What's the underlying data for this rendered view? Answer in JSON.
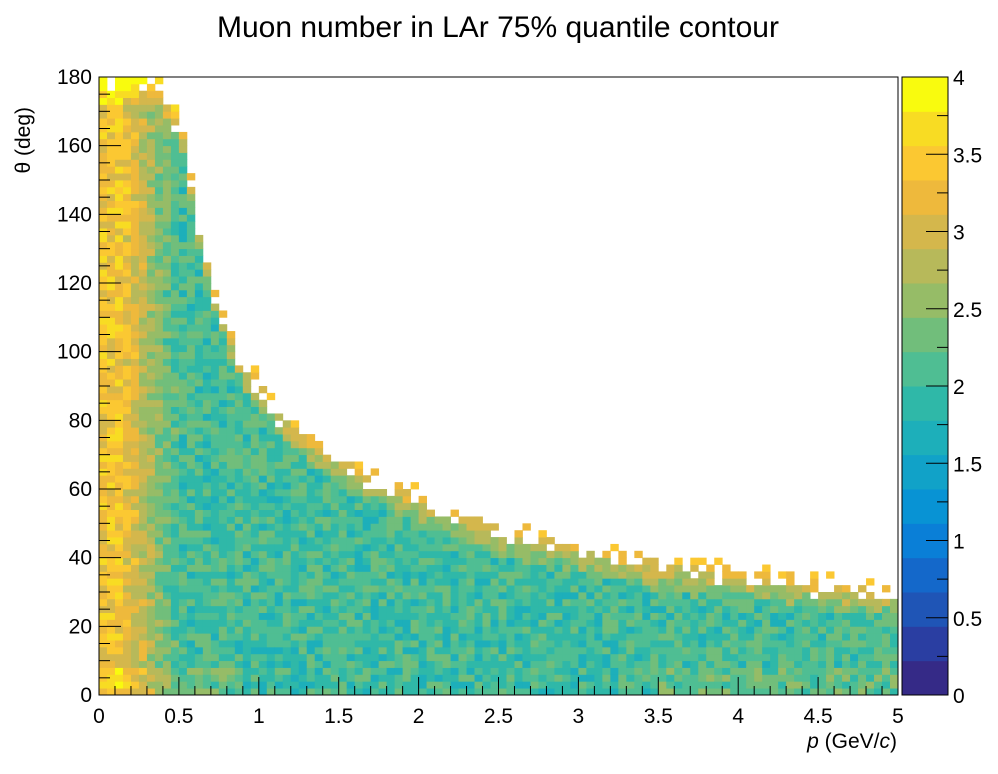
{
  "chart_data": {
    "type": "heatmap",
    "title": "Muon number in LAr 75% quantile contour",
    "xlabel_var": "p",
    "xlabel_units": " (GeV/",
    "xlabel_c": "c",
    "xlabel_close": ")",
    "ylabel": "θ (deg)",
    "xlim": [
      0,
      5
    ],
    "ylim": [
      0,
      180
    ],
    "zlim": [
      0,
      4
    ],
    "n_bins_x": 100,
    "n_bins_y": 90,
    "x_ticks": [
      {
        "v": 0,
        "label": "0"
      },
      {
        "v": 0.5,
        "label": "0.5"
      },
      {
        "v": 1,
        "label": "1"
      },
      {
        "v": 1.5,
        "label": "1.5"
      },
      {
        "v": 2,
        "label": "2"
      },
      {
        "v": 2.5,
        "label": "2.5"
      },
      {
        "v": 3,
        "label": "3"
      },
      {
        "v": 3.5,
        "label": "3.5"
      },
      {
        "v": 4,
        "label": "4"
      },
      {
        "v": 4.5,
        "label": "4.5"
      },
      {
        "v": 5,
        "label": "5"
      }
    ],
    "y_ticks": [
      {
        "v": 0,
        "label": "0"
      },
      {
        "v": 20,
        "label": "20"
      },
      {
        "v": 40,
        "label": "40"
      },
      {
        "v": 60,
        "label": "60"
      },
      {
        "v": 80,
        "label": "80"
      },
      {
        "v": 100,
        "label": "100"
      },
      {
        "v": 120,
        "label": "120"
      },
      {
        "v": 140,
        "label": "140"
      },
      {
        "v": 160,
        "label": "160"
      },
      {
        "v": 180,
        "label": "180"
      }
    ],
    "z_ticks": [
      {
        "v": 0,
        "label": "0"
      },
      {
        "v": 0.5,
        "label": "0.5"
      },
      {
        "v": 1,
        "label": "1"
      },
      {
        "v": 1.5,
        "label": "1.5"
      },
      {
        "v": 2,
        "label": "2"
      },
      {
        "v": 2.5,
        "label": "2.5"
      },
      {
        "v": 3,
        "label": "3"
      },
      {
        "v": 3.5,
        "label": "3.5"
      },
      {
        "v": 4,
        "label": "4"
      }
    ],
    "contour_edge": [
      {
        "p": 0.05,
        "theta": 180
      },
      {
        "p": 0.35,
        "theta": 180
      },
      {
        "p": 0.45,
        "theta": 170
      },
      {
        "p": 0.55,
        "theta": 160
      },
      {
        "p": 0.6,
        "theta": 140
      },
      {
        "p": 0.7,
        "theta": 120
      },
      {
        "p": 0.85,
        "theta": 100
      },
      {
        "p": 1.0,
        "theta": 90
      },
      {
        "p": 1.2,
        "theta": 78
      },
      {
        "p": 1.5,
        "theta": 68
      },
      {
        "p": 2.0,
        "theta": 57
      },
      {
        "p": 2.5,
        "theta": 48
      },
      {
        "p": 3.0,
        "theta": 43
      },
      {
        "p": 3.5,
        "theta": 38
      },
      {
        "p": 4.0,
        "theta": 35
      },
      {
        "p": 4.5,
        "theta": 32
      },
      {
        "p": 5.0,
        "theta": 30
      }
    ],
    "palette": [
      "#352a87",
      "#2a3ea2",
      "#1f55b6",
      "#1468ca",
      "#0a7fd7",
      "#0893d4",
      "#11a2c8",
      "#1dafba",
      "#2fb8a8",
      "#4fbe93",
      "#71be7b",
      "#96bc67",
      "#b7b95a",
      "#d4b74c",
      "#eeb93c",
      "#fbc832",
      "#f8dc23",
      "#f9fb0e"
    ]
  }
}
